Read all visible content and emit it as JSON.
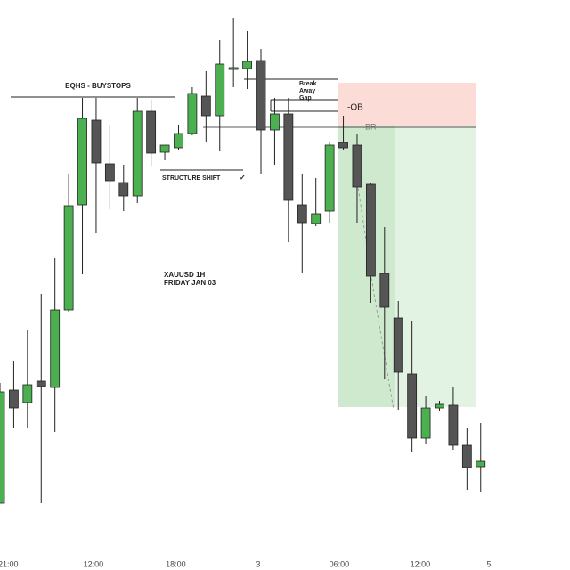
{
  "chart_data": {
    "type": "candlestick",
    "x": [
      0,
      1,
      2,
      3,
      4,
      5,
      6,
      7,
      8,
      9,
      10,
      11,
      12,
      13,
      14,
      15,
      16,
      17,
      18,
      19,
      20,
      21,
      22,
      23,
      24,
      25,
      26,
      27,
      28,
      29,
      30,
      31,
      32,
      33,
      34,
      35
    ],
    "open": [
      75,
      202,
      188,
      212,
      205,
      292,
      410,
      505,
      456,
      435,
      420,
      515,
      469,
      474,
      490,
      532,
      510,
      564,
      563,
      572,
      494,
      512,
      410,
      389,
      403,
      480,
      477,
      433,
      333,
      283,
      220,
      148,
      182,
      185,
      140,
      116
    ],
    "high": [
      210,
      235,
      270,
      310,
      350,
      445,
      530,
      530,
      500,
      455,
      530,
      528,
      477,
      500,
      542,
      560,
      595,
      620,
      605,
      585,
      530,
      530,
      445,
      440,
      480,
      510,
      490,
      435,
      385,
      302,
      280,
      195,
      190,
      205,
      160,
      165
    ],
    "low": [
      75,
      160,
      160,
      75,
      155,
      290,
      332,
      378,
      405,
      403,
      412,
      454,
      460,
      472,
      488,
      480,
      470,
      542,
      540,
      445,
      455,
      368,
      333,
      386,
      390,
      472,
      390,
      300,
      215,
      180,
      133,
      142,
      178,
      135,
      90,
      88
    ],
    "close": [
      200,
      182,
      208,
      206,
      292,
      409,
      507,
      457,
      437,
      420,
      515,
      468,
      477,
      490,
      535,
      510,
      568,
      564,
      571,
      494,
      512,
      415,
      390,
      400,
      477,
      474,
      430,
      330,
      295,
      222,
      148,
      182,
      186,
      140,
      115,
      122
    ],
    "up_color": "#4caf50",
    "down_color": "#555555",
    "xlim": [
      0,
      41.5
    ],
    "ylim": [
      0,
      640
    ],
    "xticks": [
      {
        "value": 0.6,
        "label": "21:00"
      },
      {
        "value": 6.8,
        "label": "12:00"
      },
      {
        "value": 12.8,
        "label": "18:00"
      },
      {
        "value": 18.8,
        "label": "3"
      },
      {
        "value": 24.7,
        "label": "06:00"
      },
      {
        "value": 30.6,
        "label": "12:00"
      },
      {
        "value": 35.6,
        "label": "5"
      }
    ],
    "annotations": {
      "eqhs": "EQHS - BUYSTOPS",
      "structure_shift": "STRUCTURE SHIFT",
      "check": "✓",
      "gap": [
        "Break",
        "Away",
        "Gap"
      ],
      "ob": "-OB",
      "br": "BR",
      "symbol": "XAUUSD   1H",
      "date": "FRIDAY JAN 03"
    }
  }
}
